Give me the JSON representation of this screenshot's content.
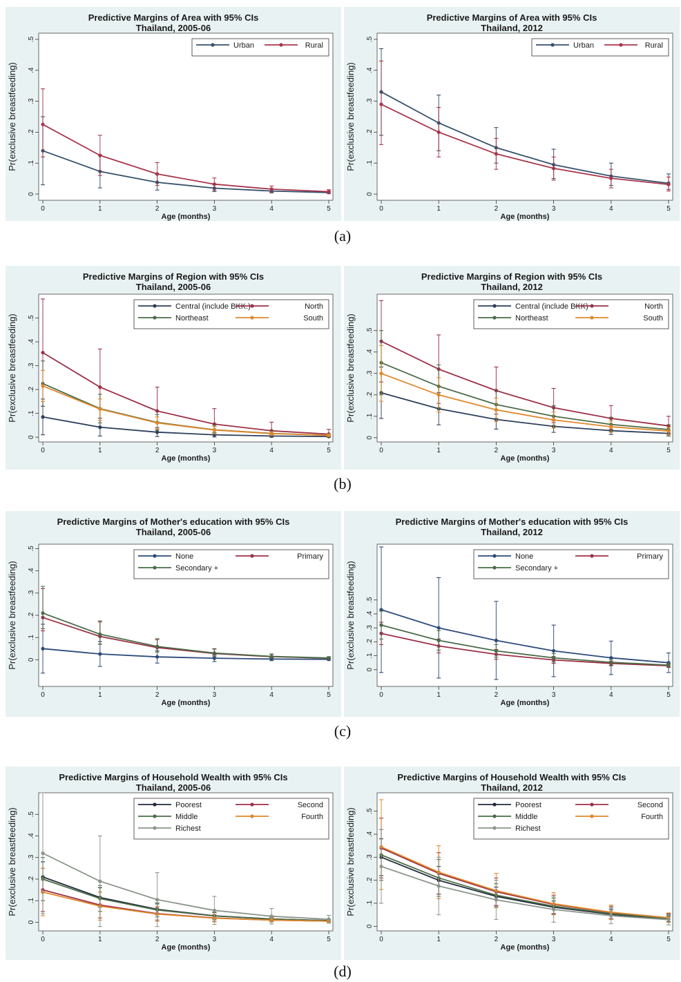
{
  "figure_labels": [
    "(a)",
    "(b)",
    "(c)",
    "(d)"
  ],
  "chart_data": [
    {
      "type": "line",
      "title": "Predictive Margins of Area with 95% CIs",
      "subtitle": "Thailand, 2005-06",
      "xlabel": "Age (months)",
      "ylabel": "Pr(exclusive breastfeeding)",
      "x": [
        0,
        1,
        2,
        3,
        4,
        5
      ],
      "ylim": [
        -0.02,
        0.52
      ],
      "yticks": [
        0,
        0.1,
        0.2,
        0.3,
        0.4,
        0.5
      ],
      "ytick_labels": [
        "0",
        ".1",
        ".2",
        ".3",
        ".4",
        ".5"
      ],
      "legend_position": "top-right",
      "legend_cols": 2,
      "series": [
        {
          "name": "Urban",
          "color": "#34506b",
          "values": [
            0.14,
            0.073,
            0.038,
            0.019,
            0.01,
            0.005
          ],
          "ci_low": [
            0.03,
            0.02,
            0.013,
            0.008,
            0.004,
            0.002
          ],
          "ci_high": [
            0.25,
            0.127,
            0.063,
            0.03,
            0.016,
            0.008
          ]
        },
        {
          "name": "Rural",
          "color": "#a8354b",
          "values": [
            0.225,
            0.125,
            0.065,
            0.032,
            0.016,
            0.008
          ],
          "ci_low": [
            0.12,
            0.06,
            0.028,
            0.012,
            0.006,
            0.003
          ],
          "ci_high": [
            0.34,
            0.19,
            0.102,
            0.052,
            0.026,
            0.014
          ]
        }
      ]
    },
    {
      "type": "line",
      "title": "Predictive Margins of Area with 95% CIs",
      "subtitle": "Thailand, 2012",
      "xlabel": "Age (months)",
      "ylabel": "Pr(exclusive breastfeeding)",
      "x": [
        0,
        1,
        2,
        3,
        4,
        5
      ],
      "ylim": [
        -0.02,
        0.52
      ],
      "yticks": [
        0,
        0.1,
        0.2,
        0.3,
        0.4,
        0.5
      ],
      "ytick_labels": [
        "0",
        ".1",
        ".2",
        ".3",
        ".4",
        ".5"
      ],
      "legend_position": "top-right",
      "legend_cols": 2,
      "series": [
        {
          "name": "Urban",
          "color": "#34506b",
          "values": [
            0.33,
            0.23,
            0.15,
            0.095,
            0.058,
            0.035
          ],
          "ci_low": [
            0.19,
            0.14,
            0.1,
            0.05,
            0.028,
            0.015
          ],
          "ci_high": [
            0.47,
            0.32,
            0.215,
            0.145,
            0.1,
            0.065
          ]
        },
        {
          "name": "Rural",
          "color": "#a8354b",
          "values": [
            0.29,
            0.2,
            0.13,
            0.083,
            0.051,
            0.031
          ],
          "ci_low": [
            0.16,
            0.12,
            0.08,
            0.045,
            0.02,
            0.01
          ],
          "ci_high": [
            0.43,
            0.28,
            0.18,
            0.12,
            0.08,
            0.055
          ]
        }
      ]
    },
    {
      "type": "line",
      "title": "Predictive Margins of Region with 95% CIs",
      "subtitle": "Thailand, 2005-06",
      "xlabel": "Age (months)",
      "ylabel": "Pr(exclusive breastfeeding)",
      "x": [
        0,
        1,
        2,
        3,
        4,
        5
      ],
      "ylim": [
        -0.02,
        0.6
      ],
      "yticks": [
        0,
        0.1,
        0.2,
        0.3,
        0.4,
        0.5
      ],
      "ytick_labels": [
        "0",
        ".1",
        ".2",
        ".3",
        ".4",
        ".5"
      ],
      "legend_position": "top-right",
      "legend_cols": 2,
      "series": [
        {
          "name": "Central (include BKK.)",
          "color": "#2c3e5a",
          "values": [
            0.085,
            0.042,
            0.021,
            0.01,
            0.005,
            0.003
          ],
          "ci_low": [
            0.01,
            0.005,
            0.003,
            0.001,
            0.0,
            0.0
          ],
          "ci_high": [
            0.16,
            0.08,
            0.04,
            0.02,
            0.01,
            0.006
          ]
        },
        {
          "name": "North",
          "color": "#9c2f46",
          "values": [
            0.355,
            0.21,
            0.11,
            0.055,
            0.027,
            0.013
          ],
          "ci_low": [
            0.13,
            0.07,
            0.03,
            0.013,
            0.006,
            0.002
          ],
          "ci_high": [
            0.58,
            0.37,
            0.21,
            0.12,
            0.063,
            0.033
          ]
        },
        {
          "name": "Northeast",
          "color": "#4a6b47",
          "values": [
            0.225,
            0.12,
            0.062,
            0.031,
            0.016,
            0.008
          ],
          "ci_low": [
            0.13,
            0.06,
            0.03,
            0.013,
            0.006,
            0.002
          ],
          "ci_high": [
            0.32,
            0.18,
            0.095,
            0.05,
            0.026,
            0.014
          ]
        },
        {
          "name": "South",
          "color": "#e0872a",
          "values": [
            0.215,
            0.118,
            0.06,
            0.03,
            0.015,
            0.008
          ],
          "ci_low": [
            0.15,
            0.07,
            0.035,
            0.015,
            0.007,
            0.003
          ],
          "ci_high": [
            0.28,
            0.16,
            0.085,
            0.045,
            0.023,
            0.013
          ]
        }
      ]
    },
    {
      "type": "line",
      "title": "Predictive Margins of Region with 95% CIs",
      "subtitle": "Thailand, 2012",
      "xlabel": "Age (months)",
      "ylabel": "Pr(exclusive breastfeeding)",
      "x": [
        0,
        1,
        2,
        3,
        4,
        5
      ],
      "ylim": [
        -0.02,
        0.67
      ],
      "yticks": [
        0,
        0.1,
        0.2,
        0.3,
        0.4,
        0.5
      ],
      "ytick_labels": [
        "0",
        ".1",
        ".2",
        ".3",
        ".4",
        ".5"
      ],
      "legend_position": "top-right",
      "legend_cols": 2,
      "series": [
        {
          "name": "Central (include BKK)",
          "color": "#2c3e5a",
          "values": [
            0.21,
            0.135,
            0.085,
            0.053,
            0.033,
            0.02
          ],
          "ci_low": [
            0.09,
            0.06,
            0.04,
            0.025,
            0.015,
            0.008
          ],
          "ci_high": [
            0.33,
            0.21,
            0.13,
            0.08,
            0.05,
            0.032
          ]
        },
        {
          "name": "North",
          "color": "#9c2f46",
          "values": [
            0.45,
            0.32,
            0.22,
            0.14,
            0.09,
            0.055
          ],
          "ci_low": [
            0.26,
            0.16,
            0.11,
            0.07,
            0.04,
            0.02
          ],
          "ci_high": [
            0.64,
            0.48,
            0.33,
            0.23,
            0.15,
            0.1
          ]
        },
        {
          "name": "Northeast",
          "color": "#4a6b47",
          "values": [
            0.35,
            0.24,
            0.155,
            0.1,
            0.062,
            0.038
          ],
          "ci_low": [
            0.2,
            0.14,
            0.09,
            0.055,
            0.03,
            0.018
          ],
          "ci_high": [
            0.5,
            0.34,
            0.22,
            0.15,
            0.095,
            0.06
          ]
        },
        {
          "name": "South",
          "color": "#e0872a",
          "values": [
            0.3,
            0.2,
            0.13,
            0.083,
            0.051,
            0.031
          ],
          "ci_low": [
            0.17,
            0.12,
            0.075,
            0.045,
            0.025,
            0.014
          ],
          "ci_high": [
            0.43,
            0.28,
            0.185,
            0.12,
            0.078,
            0.048
          ]
        }
      ]
    },
    {
      "type": "line",
      "title": "Predictive Margins of Mother's education with 95% CIs",
      "subtitle": "Thailand, 2005-06",
      "xlabel": "Age (months)",
      "ylabel": "Pr(exclusive breastfeeding)",
      "x": [
        0,
        1,
        2,
        3,
        4,
        5
      ],
      "ylim": [
        -0.12,
        0.52
      ],
      "yticks": [
        0,
        0.1,
        0.2,
        0.3,
        0.4,
        0.5
      ],
      "ytick_labels": [
        "0",
        ".1",
        ".2",
        ".3",
        ".4",
        ".5"
      ],
      "legend_position": "top-right",
      "legend_cols": 2,
      "series": [
        {
          "name": "None",
          "color": "#2b4a7a",
          "values": [
            0.05,
            0.026,
            0.013,
            0.007,
            0.003,
            0.002
          ],
          "ci_low": [
            -0.06,
            -0.03,
            -0.015,
            -0.008,
            -0.004,
            -0.002
          ],
          "ci_high": [
            0.16,
            0.082,
            0.041,
            0.022,
            0.01,
            0.006
          ]
        },
        {
          "name": "Primary",
          "color": "#9c2f46",
          "values": [
            0.19,
            0.105,
            0.055,
            0.028,
            0.014,
            0.007
          ],
          "ci_low": [
            0.13,
            0.07,
            0.035,
            0.016,
            0.007,
            0.003
          ],
          "ci_high": [
            0.32,
            0.17,
            0.09,
            0.048,
            0.025,
            0.013
          ]
        },
        {
          "name": "Secondary +",
          "color": "#4a6b47",
          "values": [
            0.21,
            0.115,
            0.06,
            0.03,
            0.015,
            0.008
          ],
          "ci_low": [
            0.14,
            0.07,
            0.035,
            0.016,
            0.007,
            0.003
          ],
          "ci_high": [
            0.33,
            0.175,
            0.095,
            0.05,
            0.026,
            0.014
          ]
        }
      ]
    },
    {
      "type": "line",
      "title": "Predictive Margins of Mother's education with 95% CIs",
      "subtitle": "Thailand, 2012",
      "xlabel": "Age (months)",
      "ylabel": "Pr(exclusive breastfeeding)",
      "x": [
        0,
        1,
        2,
        3,
        4,
        5
      ],
      "ylim": [
        -0.12,
        0.9
      ],
      "yticks": [
        0,
        0.1,
        0.2,
        0.3,
        0.4,
        0.5
      ],
      "ytick_labels": [
        "0",
        ".1",
        ".2",
        ".3",
        ".4",
        ".5"
      ],
      "legend_position": "top-right",
      "legend_cols": 2,
      "series": [
        {
          "name": "None",
          "color": "#2b4a7a",
          "values": [
            0.43,
            0.3,
            0.21,
            0.135,
            0.085,
            0.05
          ],
          "ci_low": [
            -0.02,
            -0.06,
            -0.07,
            -0.05,
            -0.035,
            -0.02
          ],
          "ci_high": [
            0.88,
            0.66,
            0.49,
            0.32,
            0.205,
            0.12
          ]
        },
        {
          "name": "Primary",
          "color": "#9c2f46",
          "values": [
            0.26,
            0.17,
            0.11,
            0.07,
            0.045,
            0.028
          ],
          "ci_low": [
            0.18,
            0.12,
            0.075,
            0.045,
            0.028,
            0.016
          ],
          "ci_high": [
            0.34,
            0.22,
            0.145,
            0.095,
            0.062,
            0.04
          ]
        },
        {
          "name": "Secondary +",
          "color": "#4a6b47",
          "values": [
            0.32,
            0.21,
            0.135,
            0.085,
            0.053,
            0.033
          ],
          "ci_low": [
            0.22,
            0.14,
            0.09,
            0.055,
            0.032,
            0.019
          ],
          "ci_high": [
            0.42,
            0.28,
            0.18,
            0.115,
            0.074,
            0.047
          ]
        }
      ]
    },
    {
      "type": "line",
      "title": "Predictive Margins of Household Wealth with 95% CIs",
      "subtitle": "Thailand, 2005-06",
      "xlabel": "Age (months)",
      "ylabel": "Pr(exclusive breastfeeding)",
      "x": [
        0,
        1,
        2,
        3,
        4,
        5
      ],
      "ylim": [
        -0.04,
        0.6
      ],
      "yticks": [
        0,
        0.1,
        0.2,
        0.3,
        0.4,
        0.5
      ],
      "ytick_labels": [
        "0",
        ".1",
        ".2",
        ".3",
        ".4",
        ".5"
      ],
      "legend_position": "top-right",
      "legend_cols": 2,
      "series": [
        {
          "name": "Poorest",
          "color": "#1f2a3a",
          "values": [
            0.21,
            0.115,
            0.06,
            0.03,
            0.015,
            0.008
          ],
          "ci_low": [
            0.14,
            0.07,
            0.035,
            0.016,
            0.007,
            0.003
          ],
          "ci_high": [
            0.28,
            0.16,
            0.085,
            0.045,
            0.023,
            0.013
          ]
        },
        {
          "name": "Second",
          "color": "#9c2f46",
          "values": [
            0.15,
            0.08,
            0.04,
            0.02,
            0.01,
            0.005
          ],
          "ci_low": [
            0.05,
            0.02,
            0.01,
            0.004,
            0.002,
            0.001
          ],
          "ci_high": [
            0.25,
            0.14,
            0.07,
            0.036,
            0.018,
            0.009
          ]
        },
        {
          "name": "Middle",
          "color": "#4a6b47",
          "values": [
            0.2,
            0.11,
            0.057,
            0.029,
            0.015,
            0.007
          ],
          "ci_low": [
            0.1,
            0.05,
            0.025,
            0.012,
            0.006,
            0.003
          ],
          "ci_high": [
            0.3,
            0.17,
            0.09,
            0.046,
            0.024,
            0.012
          ]
        },
        {
          "name": "Fourth",
          "color": "#e0872a",
          "values": [
            0.14,
            0.075,
            0.038,
            0.019,
            0.01,
            0.005
          ],
          "ci_low": [
            0.03,
            0.01,
            0.004,
            0.002,
            0.001,
            0.0
          ],
          "ci_high": [
            0.25,
            0.14,
            0.072,
            0.036,
            0.019,
            0.01
          ]
        },
        {
          "name": "Richest",
          "color": "#8a948a",
          "values": [
            0.32,
            0.19,
            0.105,
            0.055,
            0.028,
            0.014
          ],
          "ci_low": [
            0.04,
            -0.02,
            -0.02,
            -0.01,
            -0.008,
            -0.004
          ],
          "ci_high": [
            0.6,
            0.4,
            0.23,
            0.12,
            0.064,
            0.032
          ]
        }
      ]
    },
    {
      "type": "line",
      "title": "Predictive Margins of Household Wealth with 95% CIs",
      "subtitle": "Thailand, 2012",
      "xlabel": "Age (months)",
      "ylabel": "Pr(exclusive breastfeeding)",
      "x": [
        0,
        1,
        2,
        3,
        4,
        5
      ],
      "ylim": [
        -0.02,
        0.58
      ],
      "yticks": [
        0,
        0.1,
        0.2,
        0.3,
        0.4,
        0.5
      ],
      "ytick_labels": [
        "0",
        ".1",
        ".2",
        ".3",
        ".4",
        ".5"
      ],
      "legend_position": "top-right",
      "legend_cols": 2,
      "series": [
        {
          "name": "Poorest",
          "color": "#1f2a3a",
          "values": [
            0.3,
            0.2,
            0.13,
            0.083,
            0.052,
            0.032
          ],
          "ci_low": [
            0.22,
            0.14,
            0.09,
            0.055,
            0.032,
            0.019
          ],
          "ci_high": [
            0.38,
            0.26,
            0.17,
            0.11,
            0.072,
            0.045
          ]
        },
        {
          "name": "Second",
          "color": "#9c2f46",
          "values": [
            0.34,
            0.23,
            0.15,
            0.095,
            0.06,
            0.037
          ],
          "ci_low": [
            0.21,
            0.14,
            0.09,
            0.055,
            0.033,
            0.02
          ],
          "ci_high": [
            0.47,
            0.32,
            0.21,
            0.135,
            0.087,
            0.055
          ]
        },
        {
          "name": "Middle",
          "color": "#4a6b47",
          "values": [
            0.31,
            0.21,
            0.135,
            0.087,
            0.055,
            0.034
          ],
          "ci_low": [
            0.2,
            0.13,
            0.085,
            0.052,
            0.031,
            0.018
          ],
          "ci_high": [
            0.42,
            0.29,
            0.185,
            0.122,
            0.079,
            0.05
          ]
        },
        {
          "name": "Fourth",
          "color": "#e0872a",
          "values": [
            0.345,
            0.235,
            0.155,
            0.098,
            0.061,
            0.037
          ],
          "ci_low": [
            0.16,
            0.12,
            0.08,
            0.05,
            0.03,
            0.017
          ],
          "ci_high": [
            0.55,
            0.35,
            0.23,
            0.146,
            0.092,
            0.058
          ]
        },
        {
          "name": "Richest",
          "color": "#8a948a",
          "values": [
            0.26,
            0.175,
            0.115,
            0.073,
            0.046,
            0.029
          ],
          "ci_low": [
            0.1,
            0.05,
            0.03,
            0.018,
            0.011,
            0.006
          ],
          "ci_high": [
            0.42,
            0.3,
            0.2,
            0.128,
            0.081,
            0.052
          ]
        }
      ]
    }
  ]
}
